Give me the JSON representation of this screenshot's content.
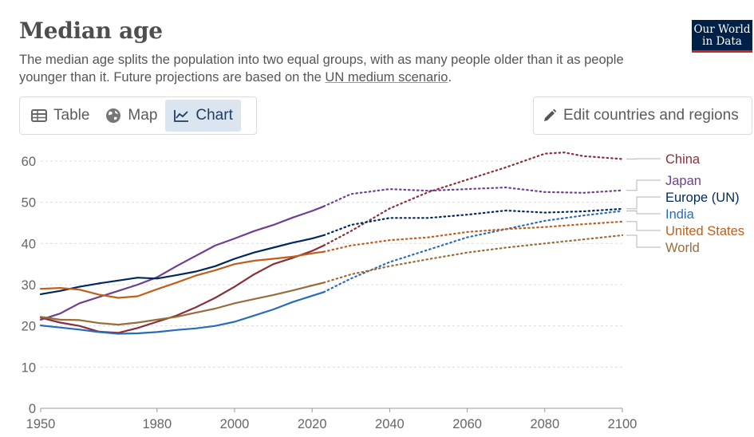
{
  "header": {
    "title": "Median age",
    "subtitle_before": "The median age splits the population into two equal groups, with as many people older than it as people younger than it. Future projections are based on the ",
    "subtitle_link": "UN medium scenario",
    "subtitle_after": ".",
    "logo_line1": "Our World",
    "logo_line2": "in Data"
  },
  "tabs": [
    {
      "label": "Table",
      "icon": "table-icon",
      "active": false
    },
    {
      "label": "Map",
      "icon": "globe-icon",
      "active": false
    },
    {
      "label": "Chart",
      "icon": "line-chart-icon",
      "active": true
    }
  ],
  "edit_button": {
    "label": "Edit countries and regions",
    "icon": "pencil-icon"
  },
  "chart_data": {
    "type": "line",
    "title": "Median age",
    "x_ticks": [
      "1950",
      "1980",
      "2000",
      "2020",
      "2040",
      "2060",
      "2080",
      "2100"
    ],
    "x_tick_values": [
      1950,
      1980,
      2000,
      2020,
      2040,
      2060,
      2080,
      2100
    ],
    "y_ticks": [
      "0",
      "10",
      "20",
      "30",
      "40",
      "50",
      "60"
    ],
    "y_tick_values": [
      0,
      10,
      20,
      30,
      40,
      50,
      60
    ],
    "xlim": [
      1950,
      2100
    ],
    "ylim": [
      0,
      60
    ],
    "grid": "horizontal dashed",
    "legend": "right",
    "projection_start": 2023,
    "series": [
      {
        "name": "China",
        "color": "#883039",
        "points": [
          [
            1950,
            22
          ],
          [
            1955,
            20.8
          ],
          [
            1960,
            20
          ],
          [
            1965,
            18.6
          ],
          [
            1970,
            18.3
          ],
          [
            1975,
            19.5
          ],
          [
            1980,
            21
          ],
          [
            1985,
            22.5
          ],
          [
            1990,
            24.5
          ],
          [
            1995,
            26.8
          ],
          [
            2000,
            29.5
          ],
          [
            2005,
            32.5
          ],
          [
            2010,
            35
          ],
          [
            2015,
            36.5
          ],
          [
            2020,
            38.2
          ],
          [
            2023,
            39.5
          ],
          [
            2030,
            43
          ],
          [
            2040,
            48.5
          ],
          [
            2050,
            52.5
          ],
          [
            2060,
            55.5
          ],
          [
            2070,
            58.5
          ],
          [
            2080,
            61.8
          ],
          [
            2085,
            62.1
          ],
          [
            2090,
            61.2
          ],
          [
            2100,
            60.5
          ]
        ]
      },
      {
        "name": "Japan",
        "color": "#6d3e91",
        "points": [
          [
            1950,
            21.5
          ],
          [
            1955,
            23
          ],
          [
            1960,
            25.5
          ],
          [
            1965,
            27
          ],
          [
            1970,
            28.5
          ],
          [
            1975,
            30
          ],
          [
            1980,
            31.8
          ],
          [
            1985,
            34.5
          ],
          [
            1990,
            37
          ],
          [
            1995,
            39.5
          ],
          [
            2000,
            41.2
          ],
          [
            2005,
            43
          ],
          [
            2010,
            44.5
          ],
          [
            2015,
            46.3
          ],
          [
            2020,
            47.9
          ],
          [
            2023,
            49
          ],
          [
            2030,
            52
          ],
          [
            2040,
            53.2
          ],
          [
            2050,
            52.8
          ],
          [
            2060,
            53.2
          ],
          [
            2070,
            53.6
          ],
          [
            2080,
            52.5
          ],
          [
            2090,
            52.3
          ],
          [
            2100,
            52.9
          ]
        ]
      },
      {
        "name": "Europe (UN)",
        "color": "#00295b",
        "points": [
          [
            1950,
            27.7
          ],
          [
            1955,
            28.5
          ],
          [
            1960,
            29.5
          ],
          [
            1965,
            30.3
          ],
          [
            1970,
            31
          ],
          [
            1975,
            31.7
          ],
          [
            1980,
            31.5
          ],
          [
            1985,
            32.3
          ],
          [
            1990,
            33.2
          ],
          [
            1995,
            34.5
          ],
          [
            2000,
            36.3
          ],
          [
            2005,
            37.8
          ],
          [
            2010,
            39
          ],
          [
            2015,
            40.2
          ],
          [
            2020,
            41.2
          ],
          [
            2023,
            42
          ],
          [
            2030,
            44.5
          ],
          [
            2040,
            46.2
          ],
          [
            2050,
            46.2
          ],
          [
            2060,
            47
          ],
          [
            2070,
            48
          ],
          [
            2080,
            47.5
          ],
          [
            2090,
            47.8
          ],
          [
            2100,
            48.4
          ]
        ]
      },
      {
        "name": "India",
        "color": "#286bbb",
        "points": [
          [
            1950,
            20.1
          ],
          [
            1955,
            19.6
          ],
          [
            1960,
            19.1
          ],
          [
            1965,
            18.5
          ],
          [
            1970,
            18.1
          ],
          [
            1975,
            18.2
          ],
          [
            1980,
            18.5
          ],
          [
            1985,
            19
          ],
          [
            1990,
            19.4
          ],
          [
            1995,
            20
          ],
          [
            2000,
            21
          ],
          [
            2005,
            22.5
          ],
          [
            2010,
            24
          ],
          [
            2015,
            25.8
          ],
          [
            2020,
            27.3
          ],
          [
            2023,
            28.2
          ],
          [
            2030,
            31.5
          ],
          [
            2040,
            35.5
          ],
          [
            2050,
            38.5
          ],
          [
            2060,
            41.5
          ],
          [
            2070,
            43.5
          ],
          [
            2080,
            45.5
          ],
          [
            2090,
            46.8
          ],
          [
            2100,
            47.9
          ]
        ]
      },
      {
        "name": "United States",
        "color": "#c15e1b",
        "points": [
          [
            1950,
            29
          ],
          [
            1955,
            29.2
          ],
          [
            1960,
            28.8
          ],
          [
            1965,
            27.6
          ],
          [
            1970,
            26.8
          ],
          [
            1975,
            27.2
          ],
          [
            1980,
            28.9
          ],
          [
            1985,
            30.5
          ],
          [
            1990,
            32.2
          ],
          [
            1995,
            33.5
          ],
          [
            2000,
            35
          ],
          [
            2005,
            35.8
          ],
          [
            2010,
            36.3
          ],
          [
            2015,
            36.8
          ],
          [
            2020,
            37.6
          ],
          [
            2023,
            38
          ],
          [
            2030,
            39.5
          ],
          [
            2040,
            40.8
          ],
          [
            2050,
            41.5
          ],
          [
            2060,
            42.8
          ],
          [
            2070,
            43.5
          ],
          [
            2080,
            44
          ],
          [
            2090,
            44.7
          ],
          [
            2100,
            45.3
          ]
        ]
      },
      {
        "name": "World",
        "color": "#996d39",
        "points": [
          [
            1950,
            22.2
          ],
          [
            1955,
            21.5
          ],
          [
            1960,
            21.4
          ],
          [
            1965,
            20.7
          ],
          [
            1970,
            20.3
          ],
          [
            1975,
            20.8
          ],
          [
            1980,
            21.5
          ],
          [
            1985,
            22.2
          ],
          [
            1990,
            23.2
          ],
          [
            1995,
            24.2
          ],
          [
            2000,
            25.5
          ],
          [
            2005,
            26.5
          ],
          [
            2010,
            27.5
          ],
          [
            2015,
            28.6
          ],
          [
            2020,
            29.8
          ],
          [
            2023,
            30.5
          ],
          [
            2030,
            32.5
          ],
          [
            2040,
            34.5
          ],
          [
            2050,
            36.2
          ],
          [
            2060,
            37.8
          ],
          [
            2070,
            39
          ],
          [
            2080,
            40
          ],
          [
            2090,
            41
          ],
          [
            2100,
            42
          ]
        ]
      }
    ]
  }
}
